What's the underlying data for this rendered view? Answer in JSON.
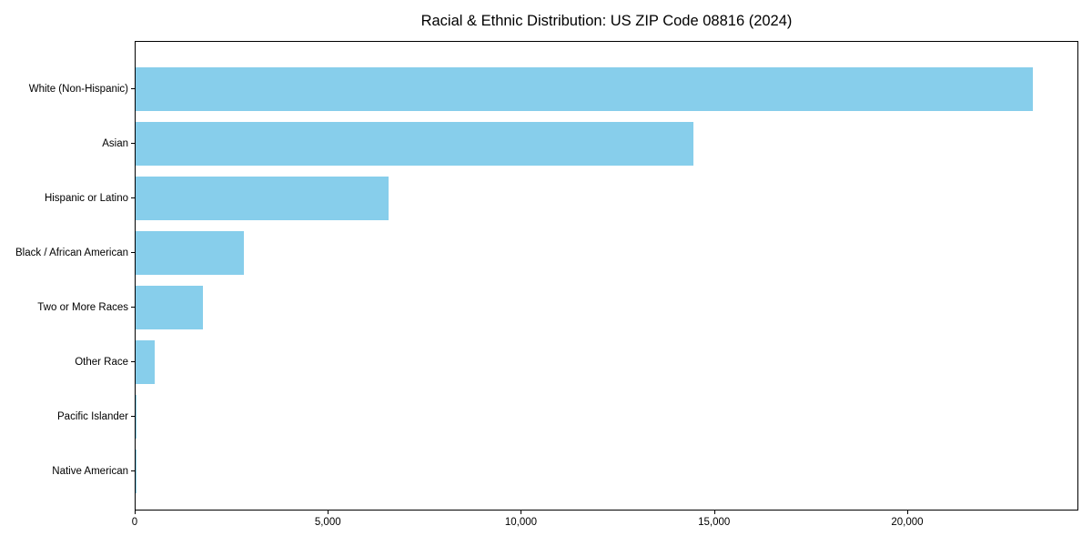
{
  "page": {
    "background": "#ffffff",
    "text_color": "#000000"
  },
  "chart_data": {
    "type": "bar",
    "orientation": "horizontal",
    "title": "Racial & Ethnic Distribution: US ZIP Code 08816 (2024)",
    "categories": [
      "White (Non-Hispanic)",
      "Asian",
      "Hispanic or Latino",
      "Black / African American",
      "Two or More Races",
      "Other Race",
      "Pacific Islander",
      "Native American"
    ],
    "values": [
      23280,
      14460,
      6560,
      2810,
      1750,
      500,
      25,
      10
    ],
    "xlabel": "",
    "ylabel": "",
    "xlim": [
      0,
      24430
    ],
    "x_ticks": [
      0,
      5000,
      10000,
      15000,
      20000
    ],
    "x_tick_labels": [
      "0",
      "5,000",
      "10,000",
      "15,000",
      "20,000"
    ],
    "bar_color": "#87CEEB",
    "axis_color": "#000000",
    "grid": false,
    "legend": "none"
  }
}
